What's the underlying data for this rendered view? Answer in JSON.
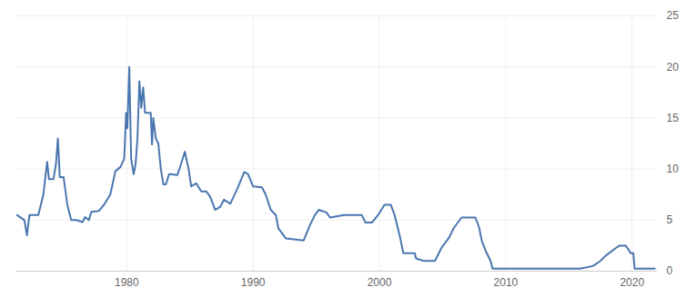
{
  "chart_data": {
    "type": "line",
    "color": "#4a76b0",
    "x": [
      1971.3,
      1971.9,
      1972.1,
      1972.3,
      1973.0,
      1973.4,
      1973.7,
      1973.85,
      1974.2,
      1974.4,
      1974.55,
      1974.7,
      1975.0,
      1975.3,
      1975.6,
      1976.0,
      1976.5,
      1976.7,
      1977.0,
      1977.2,
      1977.8,
      1978.2,
      1978.7,
      1979.1,
      1979.5,
      1979.8,
      1979.95,
      1980.05,
      1980.2,
      1980.35,
      1980.55,
      1980.7,
      1980.85,
      1981.0,
      1981.15,
      1981.3,
      1981.45,
      1981.6,
      1981.9,
      1982.0,
      1982.1,
      1982.3,
      1982.5,
      1982.7,
      1982.9,
      1983.1,
      1983.35,
      1983.5,
      1984.0,
      1984.3,
      1984.6,
      1984.9,
      1985.1,
      1985.5,
      1985.9,
      1986.3,
      1986.6,
      1987.0,
      1987.4,
      1987.7,
      1988.2,
      1988.8,
      1989.3,
      1989.6,
      1990.0,
      1990.7,
      1991.0,
      1991.4,
      1991.8,
      1992.0,
      1992.6,
      1994.0,
      1994.5,
      1994.9,
      1995.2,
      1995.8,
      1996.1,
      1997.2,
      1998.6,
      1998.9,
      1999.4,
      1999.9,
      2000.4,
      2000.9,
      2001.2,
      2001.6,
      2001.9,
      2002.8,
      2002.9,
      2003.5,
      2004.4,
      2004.9,
      2005.5,
      2005.9,
      2006.5,
      2007.6,
      2007.9,
      2008.1,
      2008.4,
      2008.8,
      2008.95,
      2015.9,
      2016.9,
      2017.5,
      2017.9,
      2018.7,
      2019.0,
      2019.5,
      2019.9,
      2020.1,
      2020.2,
      2021.8
    ],
    "values": [
      5.5,
      5.0,
      3.5,
      5.5,
      5.5,
      7.5,
      10.7,
      9.0,
      9.0,
      10.5,
      13.0,
      9.2,
      9.2,
      6.5,
      5.0,
      5.0,
      4.8,
      5.3,
      5.0,
      5.8,
      5.9,
      6.5,
      7.5,
      9.8,
      10.2,
      11.0,
      15.5,
      14.0,
      20.0,
      11.0,
      9.5,
      10.5,
      13.0,
      18.6,
      16.0,
      18.0,
      15.5,
      15.5,
      15.5,
      12.4,
      15.0,
      13.0,
      12.5,
      10.0,
      8.5,
      8.5,
      9.5,
      9.5,
      9.4,
      10.5,
      11.7,
      10.0,
      8.3,
      8.6,
      7.8,
      7.8,
      7.3,
      6.0,
      6.3,
      7.0,
      6.6,
      8.2,
      9.7,
      9.5,
      8.3,
      8.2,
      7.5,
      6.0,
      5.5,
      4.2,
      3.2,
      3.0,
      4.5,
      5.5,
      6.0,
      5.75,
      5.25,
      5.5,
      5.5,
      4.75,
      4.75,
      5.5,
      6.5,
      6.5,
      5.5,
      3.5,
      1.75,
      1.75,
      1.25,
      1.0,
      1.0,
      2.25,
      3.25,
      4.25,
      5.25,
      5.25,
      4.25,
      3.0,
      2.0,
      1.0,
      0.25,
      0.25,
      0.5,
      1.0,
      1.5,
      2.25,
      2.5,
      2.5,
      1.75,
      1.75,
      0.25,
      0.25
    ],
    "xlim": [
      1971.3,
      2022
    ],
    "xticks": [
      1980,
      1990,
      2000,
      2010,
      2020
    ],
    "ylim": [
      0,
      25
    ],
    "yticks": [
      0,
      5,
      10,
      15,
      20,
      25
    ],
    "grid": true
  }
}
